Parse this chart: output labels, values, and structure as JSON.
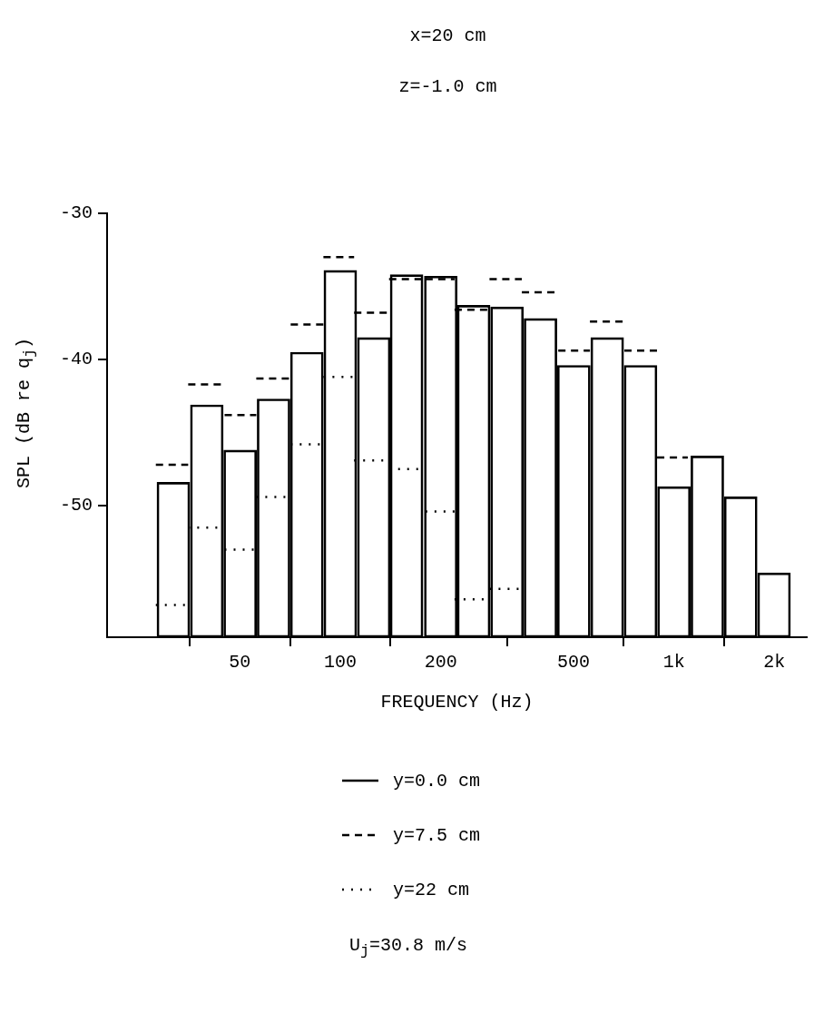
{
  "chart_data": {
    "type": "bar",
    "title": "x=20 cm",
    "subtitle": "z=-1.0 cm",
    "xlabel": "FREQUENCY (Hz)",
    "ylabel": "SPL (dB re q$_{j}$)",
    "x": [
      31.6,
      39.8,
      50.1,
      63.1,
      79.4,
      100,
      126,
      158,
      200,
      251,
      316,
      398,
      501,
      631,
      794,
      1000,
      1259,
      1585,
      1995
    ],
    "series": [
      {
        "name": "y=0.0 cm",
        "color": "#000000",
        "base": [
          -59,
          -59,
          -59,
          -59,
          -59,
          -59,
          -59,
          -59,
          -59,
          -59,
          -59,
          -59,
          -59,
          -59,
          -59,
          -59,
          -59,
          -59,
          -59
        ],
        "values": [
          10.6,
          15.9,
          12.8,
          16.3,
          19.5,
          25.1,
          20.5,
          24.8,
          24.7,
          22.7,
          22.6,
          21.8,
          18.6,
          20.5,
          18.6,
          10.3,
          12.4,
          9.6,
          4.4
        ]
      },
      {
        "name": "y=7.5 cm",
        "color": "#000000",
        "type": "line",
        "line_style": "dashed",
        "marker": "none",
        "x": [
          28,
          35,
          null,
          35,
          45,
          null,
          45,
          56,
          null,
          56,
          71,
          null,
          71,
          89,
          null,
          89,
          110,
          null,
          110,
          140,
          null,
          140,
          180,
          null,
          180,
          220,
          null,
          220,
          280,
          null,
          280,
          350,
          null,
          350,
          450,
          null,
          450,
          560,
          null,
          560,
          710,
          null,
          710,
          890,
          null,
          890,
          1100
        ],
        "values": [
          -47.2,
          -47.2,
          null,
          -41.7,
          -41.7,
          null,
          -43.8,
          -43.8,
          null,
          -41.3,
          -41.3,
          null,
          -37.6,
          -37.6,
          null,
          -33.0,
          -33.0,
          null,
          -36.8,
          -36.8,
          null,
          -34.5,
          -34.5,
          null,
          -34.5,
          -34.5,
          null,
          -36.6,
          -36.6,
          null,
          -34.5,
          -34.5,
          null,
          -35.4,
          -35.4,
          null,
          -39.4,
          -39.4,
          null,
          -37.4,
          -37.4,
          null,
          -39.4,
          -39.4,
          null,
          -46.7,
          -46.7
        ]
      },
      {
        "name": "y=22 cm",
        "color": "#000000",
        "type": "line",
        "line_style": "dotted",
        "marker": "none",
        "x": [
          28,
          35,
          null,
          35,
          45,
          null,
          45,
          56,
          null,
          56,
          71,
          null,
          71,
          89,
          null,
          89,
          110,
          null,
          110,
          140,
          null,
          140,
          180,
          null,
          180,
          220,
          null,
          220,
          280,
          null,
          280,
          350
        ],
        "values": [
          -56.8,
          -56.8,
          null,
          -51.5,
          -51.5,
          null,
          -53.0,
          -53.0,
          null,
          -49.4,
          -49.4,
          null,
          -45.8,
          -45.8,
          null,
          -41.2,
          -41.2,
          null,
          -46.9,
          -46.9,
          null,
          -47.5,
          -47.5,
          null,
          -50.4,
          -50.4,
          null,
          -56.4,
          -56.4,
          null,
          -55.7,
          -55.7
        ]
      }
    ],
    "log": "x",
    "xlim": [
      20,
      2500
    ],
    "xticks": [
      50,
      100,
      200,
      500,
      {
        "value": 1000,
        "label": "1k"
      },
      {
        "value": 2000,
        "label": "2k"
      }
    ],
    "ylim": [
      -59,
      -30
    ],
    "yticks": [
      -30,
      -40,
      -50
    ],
    "legend": "bottom",
    "annotations": [
      "U$_{j}$=30.8 m/s"
    ]
  }
}
